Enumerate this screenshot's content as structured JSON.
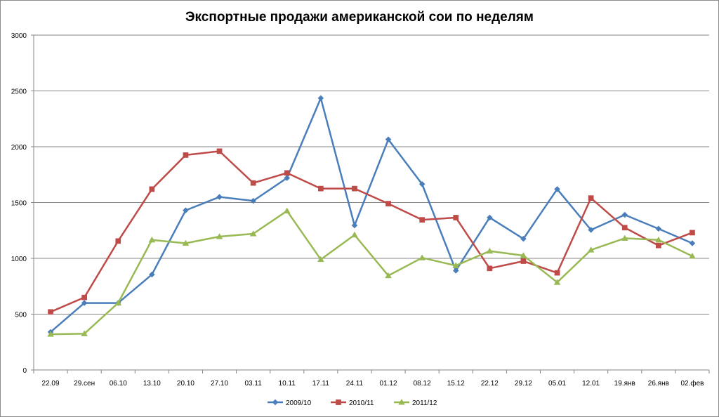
{
  "chart_data": {
    "type": "line",
    "title": "Экспортные продажи американской сои по неделям",
    "xlabel": "",
    "ylabel": "",
    "ylim": [
      0,
      3000
    ],
    "yticks": [
      0,
      500,
      1000,
      1500,
      2000,
      2500,
      3000
    ],
    "grid": true,
    "legend_position": "bottom",
    "categories": [
      "22.09",
      "29.сен",
      "06.10",
      "13.10",
      "20.10",
      "27.10",
      "03.11",
      "10.11",
      "17.11",
      "24.11",
      "01.12",
      "08.12",
      "15.12",
      "22.12",
      "29.12",
      "05.01",
      "12.01",
      "19.янв",
      "26.янв",
      "02.фев"
    ],
    "series": [
      {
        "name": "2009/10",
        "color": "#4a7ebb",
        "marker": "diamond",
        "values": [
          340,
          600,
          600,
          855,
          1430,
          1550,
          1515,
          1720,
          2435,
          1295,
          2065,
          1665,
          890,
          1365,
          1175,
          1620,
          1255,
          1390,
          1265,
          1135
        ]
      },
      {
        "name": "2010/11",
        "color": "#be4b48",
        "marker": "square",
        "values": [
          520,
          650,
          1155,
          1620,
          1925,
          1960,
          1675,
          1765,
          1625,
          1625,
          1490,
          1345,
          1365,
          910,
          975,
          870,
          1540,
          1275,
          1115,
          1230
        ]
      },
      {
        "name": "2011/12",
        "color": "#98b954",
        "marker": "triangle",
        "values": [
          320,
          325,
          600,
          1165,
          1135,
          1195,
          1220,
          1425,
          990,
          1210,
          845,
          1005,
          935,
          1065,
          1025,
          785,
          1075,
          1180,
          1165,
          1020
        ]
      }
    ]
  }
}
